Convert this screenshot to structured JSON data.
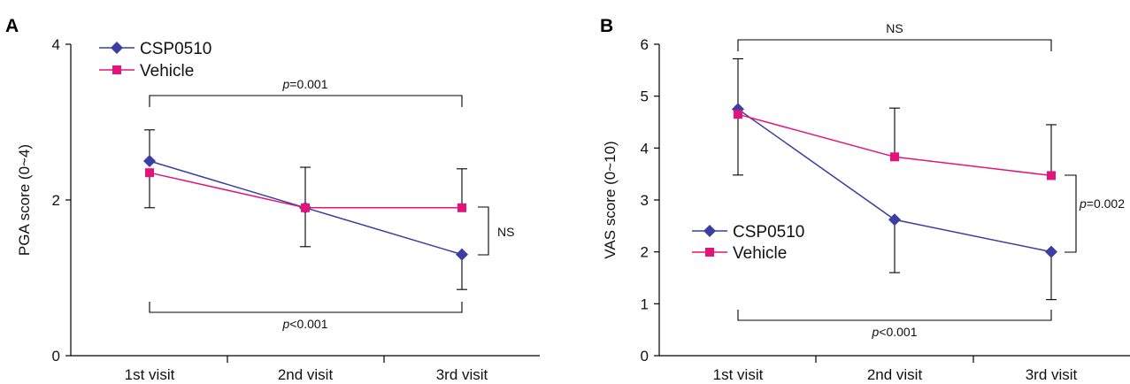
{
  "chart_data": [
    {
      "panel_label": "A",
      "type": "line",
      "title": "",
      "xlabel": "",
      "ylabel": "PGA score (0~4)",
      "categories": [
        "1st visit",
        "2nd visit",
        "3rd visit"
      ],
      "ylim": [
        0,
        4
      ],
      "yticks": [
        0,
        2,
        4
      ],
      "grid": false,
      "legend": "top-left",
      "series": [
        {
          "name": "CSP0510",
          "marker": "diamond",
          "color": "#3a3fa0",
          "values": [
            2.5,
            1.9,
            1.3
          ],
          "err_low": [
            null,
            1.4,
            0.85
          ],
          "err_high": [
            2.9,
            2.42,
            null
          ]
        },
        {
          "name": "Vehicle",
          "marker": "square",
          "color": "#e0147a",
          "values": [
            2.35,
            1.9,
            1.9
          ],
          "err_low": [
            1.9,
            null,
            null
          ],
          "err_high": [
            null,
            null,
            2.4
          ]
        }
      ],
      "annotations": [
        {
          "prefix": "p",
          "text": "=0.001"
        },
        {
          "prefix": "",
          "text": "NS"
        },
        {
          "prefix": "p",
          "text": "<0.001"
        }
      ]
    },
    {
      "panel_label": "B",
      "type": "line",
      "title": "",
      "xlabel": "",
      "ylabel": "VAS score (0~10)",
      "categories": [
        "1st visit",
        "2nd visit",
        "3rd visit"
      ],
      "ylim": [
        0,
        6
      ],
      "yticks": [
        0,
        1,
        2,
        3,
        4,
        5,
        6
      ],
      "grid": false,
      "legend": "middle-left",
      "series": [
        {
          "name": "CSP0510",
          "marker": "diamond",
          "color": "#3a3fa0",
          "values": [
            4.75,
            2.62,
            2.0
          ],
          "err_low": [
            3.48,
            1.6,
            1.08
          ],
          "err_high": [
            null,
            null,
            null
          ]
        },
        {
          "name": "Vehicle",
          "marker": "square",
          "color": "#e0147a",
          "values": [
            4.65,
            3.83,
            3.47
          ],
          "err_low": [
            null,
            null,
            null
          ],
          "err_high": [
            5.72,
            4.77,
            4.45
          ]
        }
      ],
      "annotations": [
        {
          "prefix": "",
          "text": "NS"
        },
        {
          "prefix": "p",
          "text": "=0.002"
        },
        {
          "prefix": "p",
          "text": "<0.001"
        }
      ]
    }
  ]
}
